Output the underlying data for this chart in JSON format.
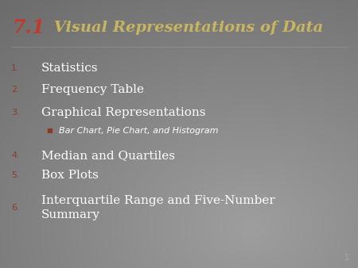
{
  "title_71": "7.1",
  "title_rest": " Visual Representations of Data",
  "title_71_color": "#c0392b",
  "title_rest_color": "#c8b560",
  "item_num_color": "#8b3a2a",
  "item_text_color": "#ffffff",
  "sub_bullet_color": "#8b3a2a",
  "sub_text_color": "#ffffff",
  "page_num": "1",
  "page_num_color": "#aaaaaa",
  "bg_colors": [
    "#7a7a82",
    "#868690",
    "#909098",
    "#7e7e88",
    "#6a6a72",
    "#787880"
  ],
  "items": [
    {
      "num": "1.",
      "text": "Statistics",
      "is_sub": false
    },
    {
      "num": "2.",
      "text": "Frequency Table",
      "is_sub": false
    },
    {
      "num": "3.",
      "text": "Graphical Representations",
      "is_sub": false
    },
    {
      "num": null,
      "text": "Bar Chart, Pie Chart, and Histogram",
      "is_sub": true
    },
    {
      "num": "4.",
      "text": "Median and Quartiles",
      "is_sub": false
    },
    {
      "num": "5.",
      "text": "Box Plots",
      "is_sub": false
    },
    {
      "num": "6.",
      "text": "Interquartile Range and Five-Number\nSummary",
      "is_sub": false
    }
  ],
  "title_fontsize": 14,
  "title_71_fontsize": 17,
  "main_fontsize": 11,
  "sub_fontsize": 8,
  "num_fontsize": 8
}
